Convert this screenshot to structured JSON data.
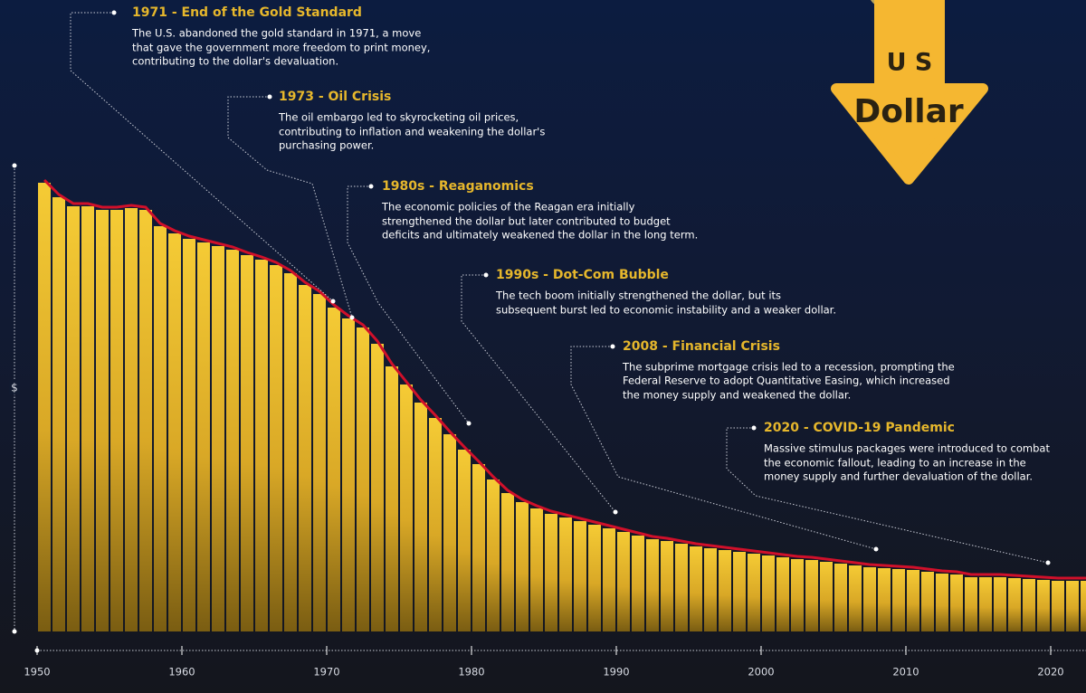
{
  "chart_data": {
    "type": "bar",
    "title": [
      "U S",
      "Dollar"
    ],
    "y_label": "$",
    "x": [
      1950,
      1951,
      1952,
      1953,
      1954,
      1955,
      1956,
      1957,
      1958,
      1959,
      1960,
      1961,
      1962,
      1963,
      1964,
      1965,
      1966,
      1967,
      1968,
      1969,
      1970,
      1971,
      1972,
      1973,
      1974,
      1975,
      1976,
      1977,
      1978,
      1979,
      1980,
      1981,
      1982,
      1983,
      1984,
      1985,
      1986,
      1987,
      1988,
      1989,
      1990,
      1991,
      1992,
      1993,
      1994,
      1995,
      1996,
      1997,
      1998,
      1999,
      2000,
      2001,
      2002,
      2003,
      2004,
      2005,
      2006,
      2007,
      2008,
      2009,
      2010,
      2011,
      2012,
      2013,
      2014,
      2015,
      2016,
      2017,
      2018,
      2019,
      2020,
      2021,
      2022
    ],
    "values": [
      99.2,
      96,
      94,
      94,
      93.2,
      93.2,
      93.6,
      93.2,
      89.6,
      88,
      86.8,
      86,
      85.2,
      84.4,
      83.2,
      82.2,
      81,
      79.2,
      76.6,
      74.6,
      71.6,
      69.2,
      67.2,
      63.6,
      58.6,
      54.6,
      50.6,
      47.2,
      43.6,
      40.2,
      37,
      33.6,
      30.6,
      28.6,
      27.2,
      26,
      25.2,
      24.4,
      23.6,
      22.8,
      22,
      21.2,
      20.4,
      20,
      19.4,
      18.8,
      18.4,
      18,
      17.6,
      17.2,
      16.8,
      16.4,
      16,
      15.8,
      15.4,
      15,
      14.6,
      14.2,
      14,
      13.8,
      13.6,
      13.2,
      12.8,
      12.6,
      12,
      12,
      12,
      11.8,
      11.6,
      11.4,
      11.2,
      11.2,
      11.2
    ],
    "color": "#f0c02a",
    "line_color": "#d0102a",
    "xlim": [
      1950,
      2023
    ],
    "xticks": [
      1950,
      1960,
      1970,
      1980,
      1990,
      2000,
      2010,
      2020
    ],
    "ylim": [
      0,
      100
    ],
    "annotations": [
      {
        "title": "1971 - End of the Gold Standard",
        "text": [
          "The U.S. abandoned the gold standard in 1971, a move",
          "that gave the government more freedom to print money,",
          "contributing to the dollar's devaluation."
        ]
      },
      {
        "title": "1973 - Oil Crisis",
        "text": [
          "The oil embargo led to skyrocketing oil prices,",
          "contributing to inflation and weakening the dollar's",
          "purchasing power."
        ]
      },
      {
        "title": "1980s - Reaganomics",
        "text": [
          "The economic policies of the Reagan era initially",
          "strengthened the dollar but later contributed to budget",
          "deficits and ultimately weakened the dollar in the long term."
        ]
      },
      {
        "title": "1990s - Dot-Com Bubble",
        "text": [
          "The tech boom initially strengthened the dollar, but its",
          "subsequent burst led to economic instability and a weaker dollar."
        ]
      },
      {
        "title": "2008 - Financial Crisis",
        "text": [
          "The subprime mortgage crisis led to a recession, prompting the",
          "Federal Reserve to adopt Quantitative Easing, which increased",
          "the money supply and weakened the dollar."
        ]
      },
      {
        "title": "2020 - COVID-19 Pandemic",
        "text": [
          "Massive stimulus packages were introduced to combat",
          "the economic fallout, leading to an increase in the",
          "money supply and further devaluation of the dollar."
        ]
      }
    ]
  }
}
